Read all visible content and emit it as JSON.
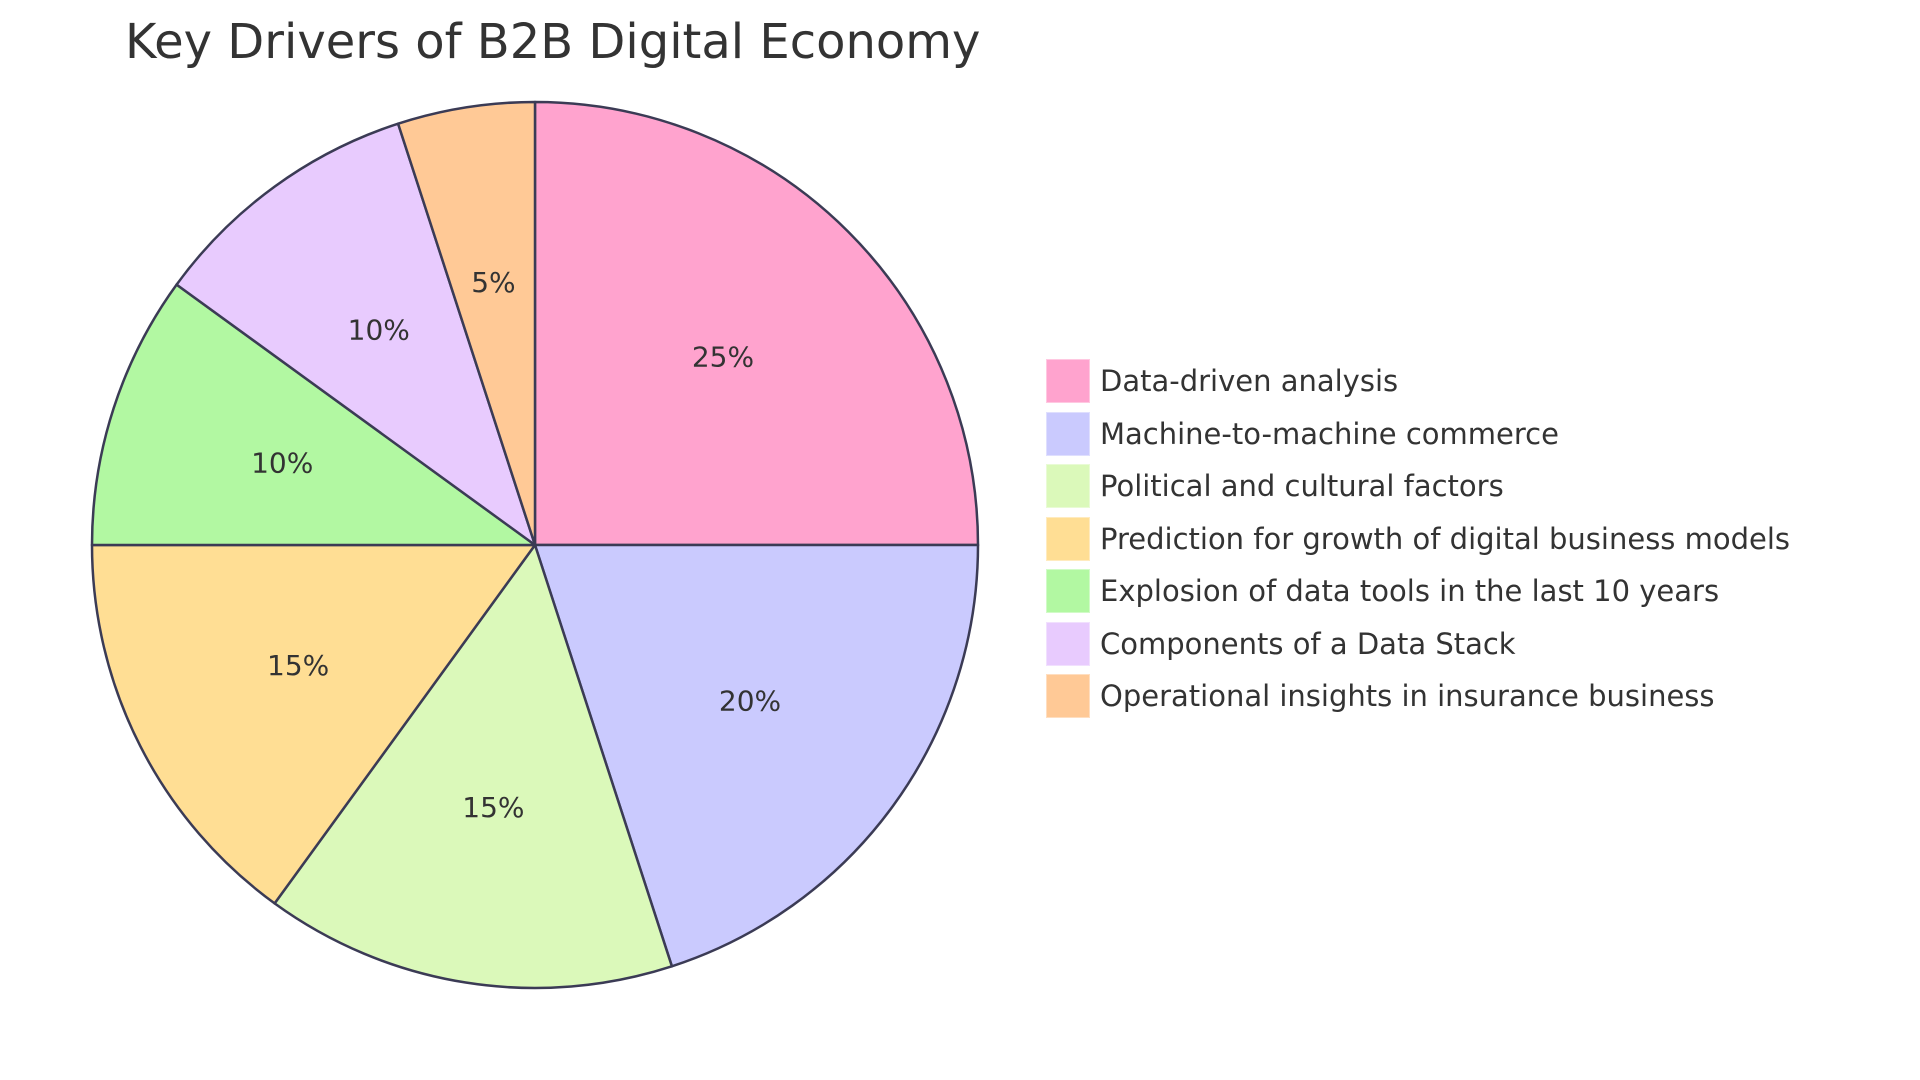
{
  "chart_data": {
    "type": "pie",
    "title": "Key Drivers of B2B Digital Economy",
    "legend_position": "right",
    "slices": [
      {
        "label": "Data-driven analysis",
        "value": 25,
        "value_label": "25%",
        "color": "#FFA3CE"
      },
      {
        "label": "Machine-to-machine commerce",
        "value": 20,
        "value_label": "20%",
        "color": "#CACAFE"
      },
      {
        "label": "Political and cultural factors",
        "value": 15,
        "value_label": "15%",
        "color": "#DBF9BA"
      },
      {
        "label": "Prediction for growth of digital business models",
        "value": 15,
        "value_label": "15%",
        "color": "#FFDE94"
      },
      {
        "label": "Explosion of data tools in the last 10 years",
        "value": 10,
        "value_label": "10%",
        "color": "#B2F8A2"
      },
      {
        "label": "Components of a Data Stack",
        "value": 10,
        "value_label": "10%",
        "color": "#E8CBFE"
      },
      {
        "label": "Operational insights in insurance business",
        "value": 5,
        "value_label": "5%",
        "color": "#FFC996"
      }
    ]
  }
}
